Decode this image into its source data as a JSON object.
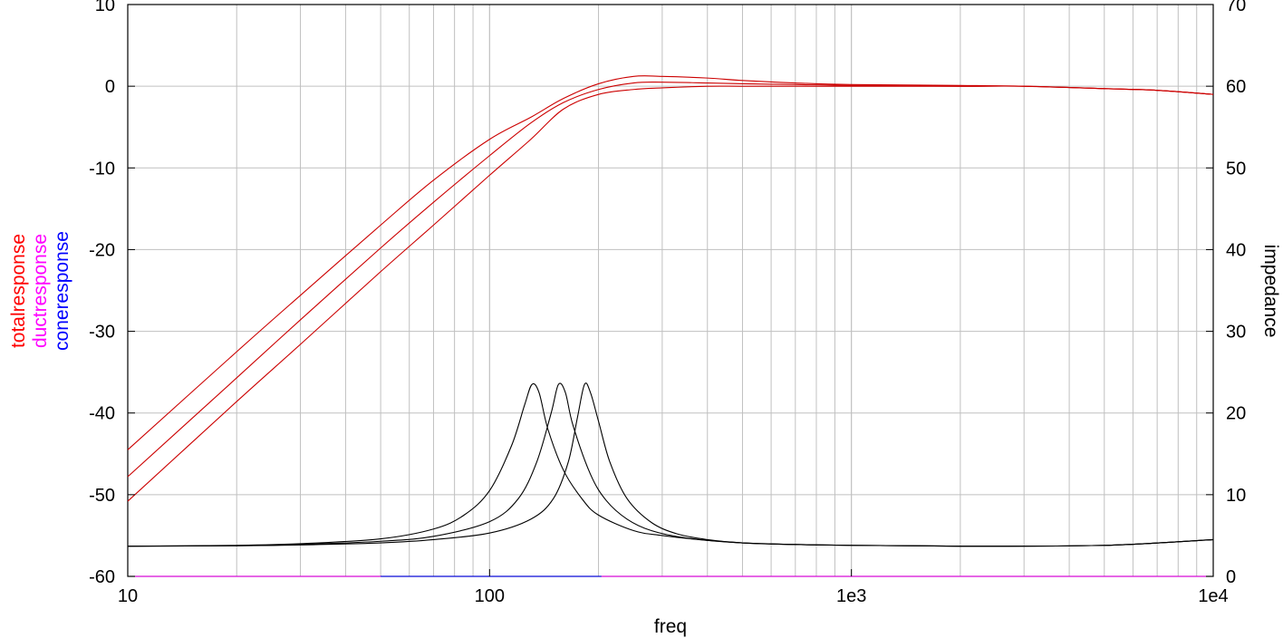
{
  "chart_data": {
    "type": "line",
    "title": "",
    "xlabel": "freq",
    "x_scale": "log",
    "xlim": [
      10,
      10000
    ],
    "x_ticks": [
      10,
      100,
      1000,
      10000
    ],
    "x_tick_labels": [
      "10",
      "100",
      "1e3",
      "1e4"
    ],
    "y_left": {
      "ylim": [
        -60,
        10
      ],
      "ticks": [
        10,
        0,
        -10,
        -20,
        -30,
        -40,
        -50,
        -60
      ],
      "tick_labels": [
        "10",
        "0",
        "-10",
        "-20",
        "-30",
        "-40",
        "-50",
        "-60"
      ],
      "labels": [
        {
          "text": "totalresponse",
          "color": "#ff0000"
        },
        {
          "text": "ductresponse",
          "color": "#ff00ff"
        },
        {
          "text": "coneresponse",
          "color": "#0000ff"
        }
      ]
    },
    "y_right": {
      "label": "impedance",
      "ylim": [
        0,
        70
      ],
      "ticks": [
        70,
        60,
        50,
        40,
        30,
        20,
        10,
        0
      ],
      "tick_labels": [
        "70",
        "60",
        "50",
        "40",
        "30",
        "20",
        "10",
        "0"
      ]
    },
    "grid": true,
    "series": [
      {
        "axis": "left",
        "color": "#cc0000",
        "x": [
          10,
          20,
          30,
          50,
          70,
          100,
          130,
          160,
          200,
          250,
          300,
          400,
          500,
          700,
          1000,
          2000,
          3000,
          5000,
          7000,
          10000
        ],
        "y": [
          -44.5,
          -32.5,
          -25.6,
          -17.0,
          -11.5,
          -6.5,
          -3.8,
          -1.5,
          0.3,
          1.2,
          1.2,
          1.0,
          0.7,
          0.4,
          0.2,
          0.1,
          0.0,
          -0.3,
          -0.5,
          -1.0
        ]
      },
      {
        "axis": "left",
        "color": "#cc0000",
        "x": [
          10,
          20,
          30,
          50,
          70,
          100,
          130,
          160,
          200,
          250,
          300,
          400,
          500,
          700,
          1000,
          2000,
          3000,
          5000,
          7000,
          10000
        ],
        "y": [
          -47.8,
          -35.7,
          -28.6,
          -19.8,
          -14.2,
          -8.5,
          -4.5,
          -2.0,
          -0.4,
          0.4,
          0.5,
          0.4,
          0.3,
          0.2,
          0.1,
          0.0,
          0.0,
          -0.3,
          -0.5,
          -1.0
        ]
      },
      {
        "axis": "left",
        "color": "#cc0000",
        "x": [
          10,
          20,
          30,
          50,
          70,
          100,
          130,
          160,
          200,
          250,
          300,
          400,
          500,
          700,
          1000,
          2000,
          3000,
          5000,
          7000,
          10000
        ],
        "y": [
          -50.8,
          -38.6,
          -31.6,
          -22.7,
          -17.0,
          -10.9,
          -6.5,
          -2.8,
          -1.0,
          -0.4,
          -0.2,
          0.0,
          0.0,
          0.0,
          0.0,
          0.0,
          0.0,
          -0.3,
          -0.5,
          -1.0
        ]
      },
      {
        "axis": "right",
        "color": "#000000",
        "x": [
          10,
          20,
          30,
          50,
          70,
          85,
          100,
          115,
          125,
          131,
          137,
          145,
          160,
          180,
          200,
          250,
          300,
          400,
          500,
          700,
          1000,
          2000,
          5000,
          10000
        ],
        "y": [
          3.7,
          3.8,
          4.0,
          4.6,
          5.8,
          7.5,
          10.5,
          16.0,
          21.0,
          23.5,
          22.5,
          18.0,
          13.0,
          9.5,
          7.5,
          5.6,
          5.0,
          4.4,
          4.1,
          3.9,
          3.8,
          3.7,
          3.8,
          4.5
        ]
      },
      {
        "axis": "right",
        "color": "#000000",
        "x": [
          10,
          20,
          30,
          50,
          70,
          100,
          120,
          135,
          148,
          155,
          162,
          170,
          190,
          210,
          240,
          280,
          350,
          500,
          700,
          1000,
          2000,
          5000,
          10000
        ],
        "y": [
          3.7,
          3.75,
          3.9,
          4.3,
          4.9,
          6.7,
          9.5,
          14.0,
          20.0,
          23.5,
          22.5,
          18.5,
          12.5,
          9.3,
          7.0,
          5.6,
          4.7,
          4.1,
          3.9,
          3.8,
          3.7,
          3.8,
          4.5
        ]
      },
      {
        "axis": "right",
        "color": "#000000",
        "x": [
          10,
          20,
          30,
          50,
          70,
          100,
          130,
          150,
          165,
          175,
          183,
          190,
          200,
          215,
          240,
          280,
          330,
          400,
          500,
          700,
          1000,
          2000,
          5000,
          10000
        ],
        "y": [
          3.7,
          3.75,
          3.85,
          4.1,
          4.5,
          5.3,
          7.0,
          9.5,
          14.0,
          19.5,
          23.5,
          22.5,
          19.0,
          14.0,
          9.5,
          6.6,
          5.2,
          4.5,
          4.1,
          3.9,
          3.8,
          3.7,
          3.8,
          4.5
        ]
      },
      {
        "axis": "left",
        "color": "#ff00ff",
        "x": [
          10,
          10000
        ],
        "y": [
          -60,
          -60
        ]
      },
      {
        "axis": "left",
        "color": "#0000ff",
        "x": [
          50,
          60,
          180,
          200
        ],
        "y": [
          -60,
          -60,
          -60,
          -60
        ]
      }
    ]
  }
}
